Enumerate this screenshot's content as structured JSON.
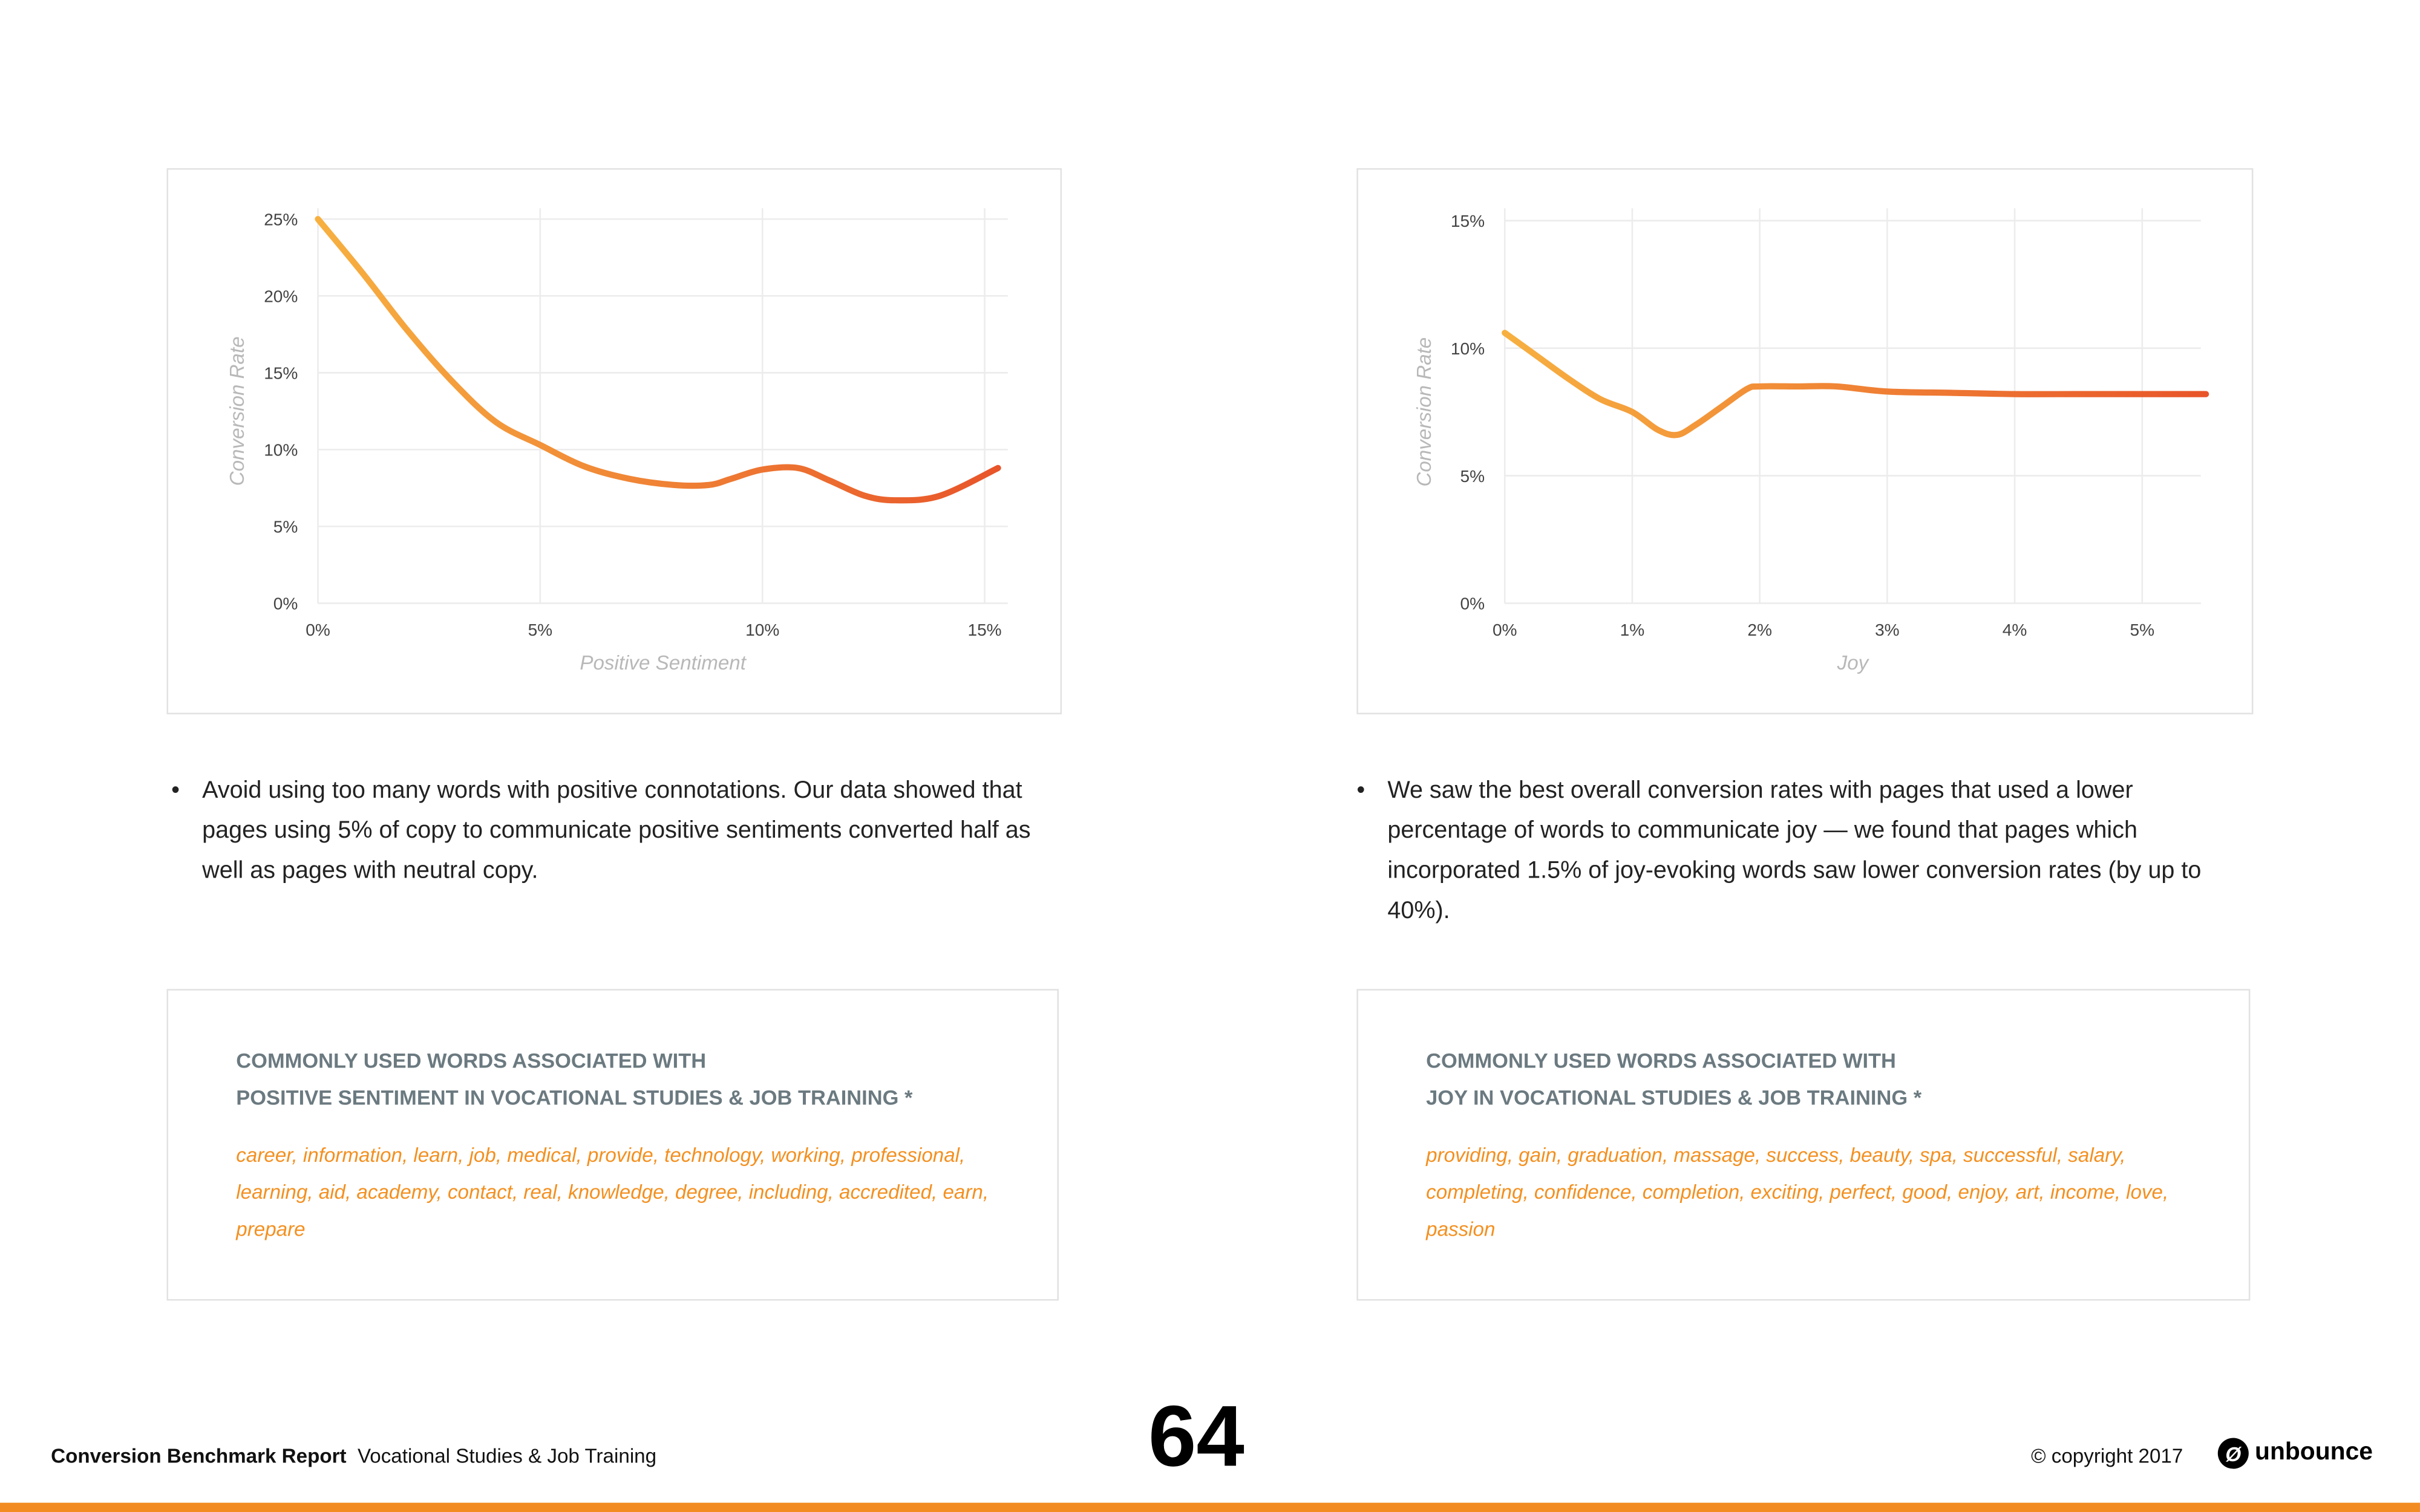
{
  "chart_data": [
    {
      "type": "line",
      "title": "",
      "xlabel": "Positive Sentiment",
      "ylabel": "Conversion Rate",
      "xlim": [
        0,
        15.3
      ],
      "ylim": [
        0,
        25
      ],
      "xticks": [
        "0%",
        "5%",
        "10%",
        "15%"
      ],
      "xtick_values": [
        0,
        5,
        10,
        15
      ],
      "yticks": [
        "0%",
        "5%",
        "10%",
        "15%",
        "20%",
        "25%"
      ],
      "ytick_values": [
        0,
        5,
        10,
        15,
        20,
        25
      ],
      "grid": true,
      "x": [
        0,
        1,
        2,
        3,
        4,
        5,
        6,
        7,
        8,
        8.8,
        9.3,
        10,
        10.8,
        11.5,
        12.3,
        13,
        14,
        15.3
      ],
      "y": [
        25,
        21.5,
        17.8,
        14.5,
        11.8,
        10.3,
        8.9,
        8.1,
        7.7,
        7.7,
        8.1,
        8.7,
        8.8,
        8,
        7,
        6.7,
        7,
        8.8
      ]
    },
    {
      "type": "line",
      "title": "",
      "xlabel": "Joy",
      "ylabel": "Conversion Rate",
      "xlim": [
        0,
        5.5
      ],
      "ylim": [
        0,
        15
      ],
      "xticks": [
        "0%",
        "1%",
        "2%",
        "3%",
        "4%",
        "5%"
      ],
      "xtick_values": [
        0,
        1,
        2,
        3,
        4,
        5
      ],
      "yticks": [
        "0%",
        "5%",
        "10%",
        "15%"
      ],
      "ytick_values": [
        0,
        5,
        10,
        15
      ],
      "grid": true,
      "x": [
        0,
        0.25,
        0.5,
        0.75,
        1,
        1.2,
        1.35,
        1.5,
        1.7,
        1.9,
        2,
        2.3,
        2.6,
        3,
        3.5,
        4,
        4.5,
        5,
        5.5
      ],
      "y": [
        10.6,
        9.7,
        8.8,
        8,
        7.5,
        6.8,
        6.6,
        7,
        7.7,
        8.4,
        8.5,
        8.5,
        8.5,
        8.3,
        8.25,
        8.2,
        8.2,
        8.2,
        8.2
      ]
    }
  ],
  "colors": {
    "line_start": "#f7b040",
    "line_end": "#e8552a",
    "accent": "#f28c22",
    "heading": "#6b7a80",
    "words": "#f39020"
  },
  "left": {
    "bullet": "Avoid using too many words with positive connotations. Our data showed that pages using 5% of copy to communicate positive sentiments converted half as well as pages with neutral copy.",
    "heading1": "COMMONLY USED WORDS ASSOCIATED WITH",
    "heading2": "POSITIVE SENTIMENT IN VOCATIONAL STUDIES & JOB TRAINING *",
    "words": "career, information, learn, job, medical, provide, technology, working, professional, learning, aid, academy, contact, real, knowledge, degree, including, accredited, earn, prepare"
  },
  "right": {
    "bullet": "We saw the best overall conversion rates with pages that used a lower percentage of words to communicate joy — we found that pages which incorporated 1.5% of joy-evoking words saw lower conversion rates (by up to 40%).",
    "heading1": "COMMONLY USED WORDS ASSOCIATED WITH",
    "heading2": "JOY IN VOCATIONAL STUDIES & JOB TRAINING *",
    "words": "providing,  gain, graduation, massage, success, beauty, spa, successful, salary, completing, confidence, completion, exciting, perfect, good, enjoy, art, income, love, passion"
  },
  "footer": {
    "report": "Conversion Benchmark Report",
    "section": "Vocational Studies & Job Training",
    "page": "64",
    "copyright": "© copyright 2017",
    "logo": "unbounce",
    "bullet_char": "•"
  }
}
